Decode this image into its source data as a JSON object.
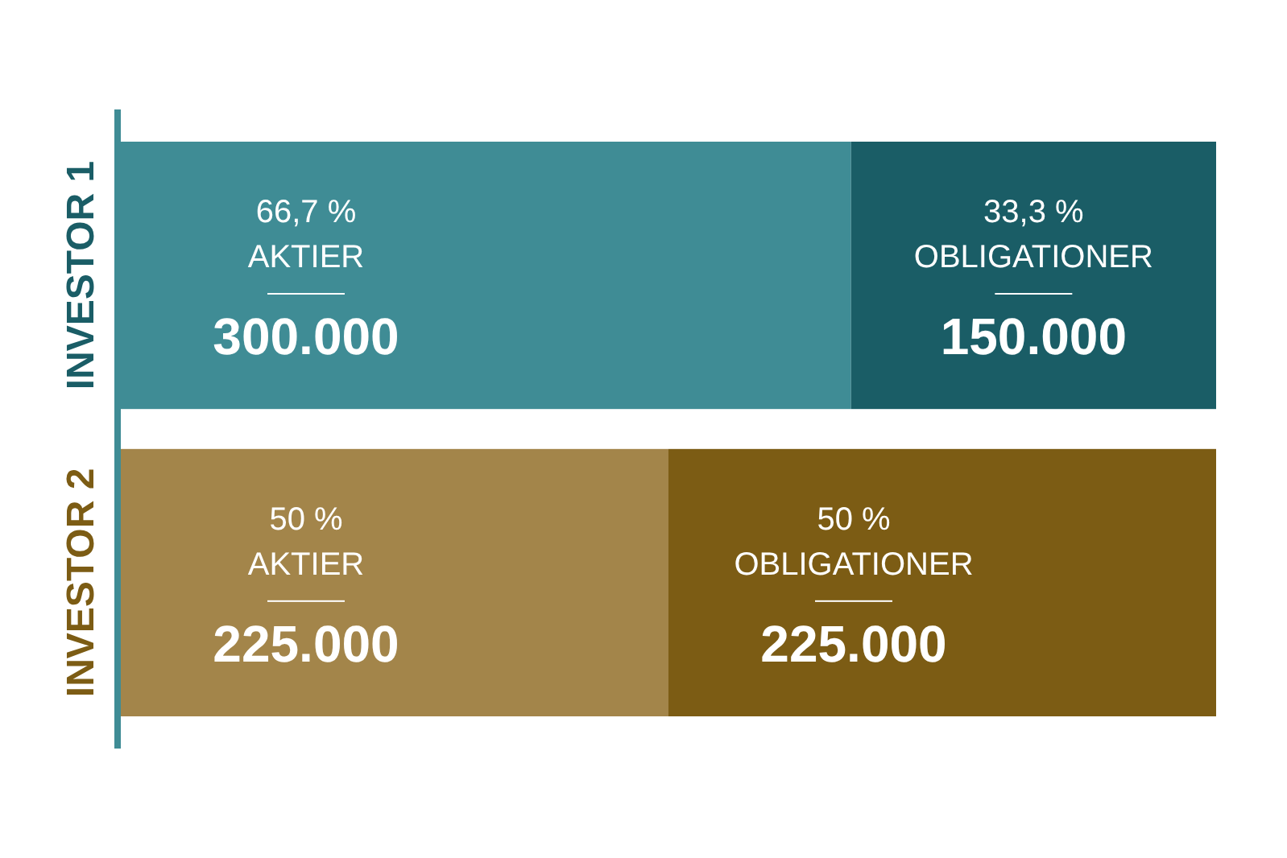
{
  "chart_data": {
    "type": "bar",
    "orientation": "horizontal",
    "stacked": true,
    "categories": [
      "INVESTOR 1",
      "INVESTOR 2"
    ],
    "series": [
      {
        "name": "AKTIER",
        "colors": [
          "#3f8c95",
          "#a3854a"
        ],
        "values": [
          300000,
          225000
        ],
        "value_labels": [
          "300.000",
          "225.000"
        ]
      },
      {
        "name": "OBLIGATIONER",
        "colors": [
          "#1a5d66",
          "#7c5c14"
        ],
        "values": [
          150000,
          225000
        ],
        "value_labels": [
          "150.000",
          "225.000"
        ]
      }
    ],
    "annotations": [
      "66,7 %",
      "33,3 %",
      "50 %",
      "50 %"
    ]
  }
}
